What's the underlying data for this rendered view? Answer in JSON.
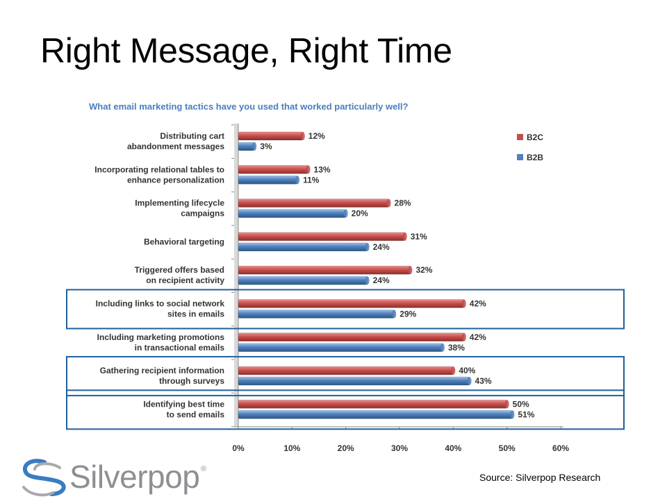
{
  "slide": {
    "title": "Right Message, Right Time",
    "source": "Source:  Silverpop Research"
  },
  "logo": {
    "text": "Silverpop",
    "reg_mark": "®",
    "icon": "silverpop-swoosh-icon"
  },
  "colors": {
    "B2C": "#c0504d",
    "B2B": "#4f81bd",
    "question": "#4a7ebb",
    "highlight": "#1f5f9a",
    "logo_gray": "#8d8f93"
  },
  "chart_data": {
    "type": "bar",
    "orientation": "horizontal",
    "title": "What email marketing tactics have you used that worked particularly well?",
    "categories": [
      [
        "Distributing cart",
        "abandonment messages"
      ],
      [
        "Incorporating relational tables to",
        "enhance personalization"
      ],
      [
        "Implementing lifecycle",
        "campaigns"
      ],
      [
        "Behavioral targeting"
      ],
      [
        "Triggered offers based",
        "on recipient activity"
      ],
      [
        "Including links to social network",
        "sites in emails"
      ],
      [
        "Including marketing promotions",
        "in transactional emails"
      ],
      [
        "Gathering recipient information",
        "through surveys"
      ],
      [
        "Identifying best time",
        "to send emails"
      ]
    ],
    "series": [
      {
        "name": "B2C",
        "values": [
          12,
          13,
          28,
          31,
          32,
          42,
          42,
          40,
          50
        ]
      },
      {
        "name": "B2B",
        "values": [
          3,
          11,
          20,
          24,
          24,
          29,
          38,
          43,
          51
        ]
      }
    ],
    "value_suffix": "%",
    "xlim": [
      0,
      60
    ],
    "xticks": [
      0,
      10,
      20,
      30,
      40,
      50,
      60
    ],
    "xticklabels": [
      "0%",
      "10%",
      "20%",
      "30%",
      "40%",
      "50%",
      "60%"
    ],
    "legend": "top-right",
    "grid": false,
    "highlighted_categories": [
      5,
      7,
      8
    ]
  }
}
